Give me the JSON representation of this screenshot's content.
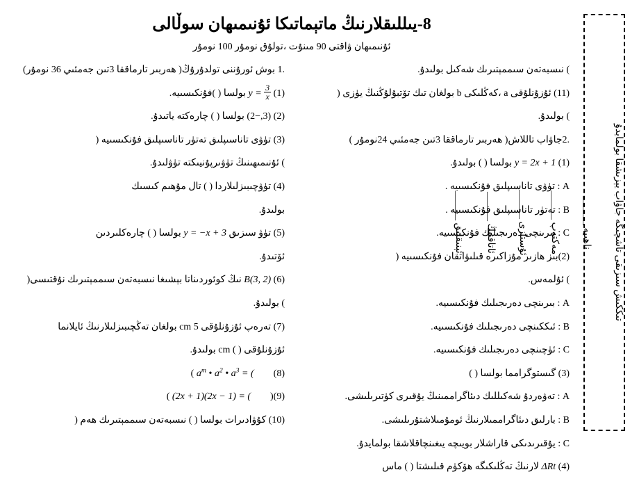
{
  "title": "8-يىللىقلارنىڭ ماتېماتىكا ئۇنىمىھان سوڵالى",
  "timing": "ئۇنىمىھان ۋاقتى 90 مىنۇت ،تولۇق نومۇر 100 نومۇر",
  "section1": ".1 بوش ئورۇننى تولدۇرۇڭ( ھەربىر تارماققا 3تىن جەمئىي 36 نومۇر)",
  "q1_pre": "(1)",
  "q1_eq_lhs": "y",
  "q1_eq_num": "3",
  "q1_eq_den": "x",
  "q1_post": "بولسا (               )فۇنكىسىيە.",
  "q2": "(2) (3,−2) بولسا (               ) چارەكتە ياتىدۇ.",
  "q3a": "(3) تۈۋى تاناسىپلىق تەتۈر تاناسىپلىق فۇنكىسىيە (",
  "q3b": ") ئۇنىمىھىنىڭ تۈۋىرپۇنيىكتە تۈۋلىدۇ.",
  "q4": "(4) تۈۋچىبىزلىلاردا (               ) تال مۇھىم كىسىك",
  "q4b": "بولىدۇ.",
  "q5_pre": "(5) تۈۋ سىزىق",
  "q5_eq": "y = −x + 3",
  "q5_post": "بولسا (               ) چارەكلىردىن",
  "q5b": "ئۆتىدۇ.",
  "q6_pre": "(6)",
  "q6_eq": "B(3, 2)",
  "q6_post": "نىڭ كوئوردىناتا بېشىغا نىسبەتەن سىممېتىرىك نۇقتىسى(",
  "q6b": ") بولىدۇ.",
  "q7a": "(7) تەرەپ ئۇزۇنلۇقى 5 cm بولغان تەڭچىبىزلىلارنىڭ ئايلانما",
  "q7b": "ئۇزۇنلۇقى (               ) cm بولىدۇ.",
  "q8_pre": "(8)",
  "q8_eq": "aᵐ • a² • a³ = (",
  "q8_post": ")",
  "q9_pre": "(9)(",
  "q9_eq": "(2x + 1)(2x − 1) = (",
  "q9_post": ")",
  "q10": "(10) كۇۋادىرات بولسا (               ) نىسبەتەن سىممېتىرىك ھەم (",
  "q11a": ") نىسبەتەن سىممېتىرىك شەكىل بولىدۇ.",
  "q11b": "(11) ئۇزۇنلۇقى  a  ،كەڭلىكى  b  بولغان تىك تۆتبۇلۇڭنىڭ يۈزى (",
  "q11c": ") بولىدۇ.",
  "section2": ".2جاۋاب تاللاش( ھەربىر تارماققا 3تىن جەمئىي 24نومۇر )",
  "s2q1_pre": "(1)",
  "s2q1_eq": "y = 2x + 1",
  "s2q1_post": "بولسا (               ) بولىدۇ.",
  "s2q1a": "A : تۈۋى تاناسىپلىق فۇنكىسىيە .",
  "s2q1b": "B : تەتۈر تاناسىپلىق فۇنكىسىيە .",
  "s2q1c": "C : بىرىنچى دەرىجىلىك فۇنكىسىيە.",
  "s2q2a": "(2)بىز   ھازىر   مۇزاكىرە   قىلىۋاتقان   فۇنكىسىيە   (",
  "s2q2b": ") ئۇلمەس.",
  "s2q2A": "A : بىرىنچى دەرىجىلىك فۇنكىسىيە.",
  "s2q2B": "B : ئىككىنچى دەرىجىلىك فۇنكىسىيە.",
  "s2q2C": "C : ئۈچىنچى دەرىجىلىك فۇنكىسىيە.",
  "s2q3": "(3) گىستوگرامما بولسا (               )",
  "s2q3A": "A : تەۋەردۇ شەكىللىك دىئاگراممىنىڭ يۇقىرى كۈتىرىلىشى.",
  "s2q3B": "B : بارلىق دىئاگراممىلارنىڭ ئومۇمىلاشتۇرىلىشى.",
  "s2q3C": "C : يۇقىرىدىكى قاراشلار بويىچە يىغىنچاقلاشقا بولمايدۇ.",
  "s2q4_pre": "(4)",
  "s2q4_eq": "ΔRt",
  "s2q4_post": "لارنىڭ تەڭلىكىگە ھۆكۈم قىلىشتا (               ) ماس",
  "sidebar_labels": {
    "a": "ناھىيە ______",
    "b": "مەكتەپ ______",
    "c": "ئۇستازى ______",
    "d": "ئاتاقنىڭ ______",
    "e": "ئېنىقلىق ______"
  },
  "sidebar_main": "تىككىش سىزىقى تاشچىگە جاۋاب يېزىشقا بولمايدۇ"
}
